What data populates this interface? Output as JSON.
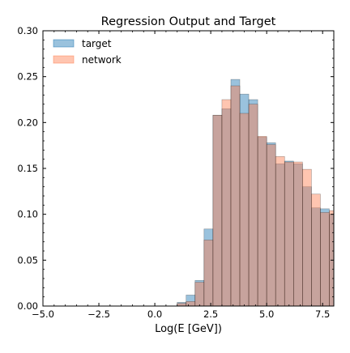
{
  "chart_data": {
    "type": "bar",
    "title": "Regression Output and Target",
    "xlabel": "Log(E [GeV])",
    "ylabel": "",
    "xlim": [
      -5.0,
      8.0
    ],
    "ylim": [
      0.0,
      0.3
    ],
    "xticks": [
      -5.0,
      -2.5,
      0.0,
      2.5,
      5.0,
      7.5
    ],
    "xtick_labels": [
      "−5.0",
      "−2.5",
      "0.0",
      "2.5",
      "5.0",
      "7.5"
    ],
    "yticks": [
      0.0,
      0.05,
      0.1,
      0.15,
      0.2,
      0.25,
      0.3
    ],
    "ytick_labels": [
      "0.00",
      "0.05",
      "0.10",
      "0.15",
      "0.20",
      "0.25",
      "0.30"
    ],
    "grid": false,
    "legend_position": "top-left",
    "bin_edges": [
      1.0,
      1.4,
      1.8,
      2.2,
      2.6,
      3.0,
      3.4,
      3.8,
      4.2,
      4.6,
      5.0,
      5.4,
      5.8,
      6.2,
      6.6,
      7.0,
      7.4,
      7.8,
      8.2
    ],
    "series": [
      {
        "name": "target",
        "color": "#1f77b4",
        "values": [
          0.004,
          0.012,
          0.028,
          0.084,
          0.208,
          0.215,
          0.247,
          0.231,
          0.225,
          0.184,
          0.178,
          0.155,
          0.158,
          0.155,
          0.13,
          0.107,
          0.106,
          0.1
        ]
      },
      {
        "name": "network",
        "color": "#ff7f50",
        "values": [
          0.003,
          0.005,
          0.026,
          0.072,
          0.208,
          0.225,
          0.24,
          0.21,
          0.22,
          0.185,
          0.176,
          0.163,
          0.157,
          0.157,
          0.149,
          0.122,
          0.102,
          0.104
        ]
      }
    ]
  }
}
